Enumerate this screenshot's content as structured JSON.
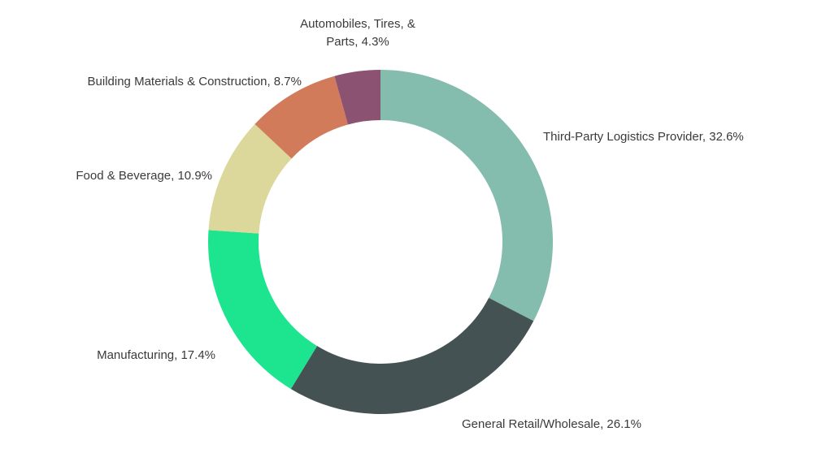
{
  "chart_data": {
    "type": "pie",
    "donut": true,
    "title": "",
    "start": "top",
    "direction": "clockwise",
    "slices": [
      {
        "label": "Third-Party Logistics Provider, 32.6%",
        "value": 32.6,
        "color": "#84bcae"
      },
      {
        "label": "General Retail/Wholesale, 26.1%",
        "value": 26.1,
        "color": "#455254"
      },
      {
        "label": "Manufacturing, 17.4%",
        "value": 17.4,
        "color": "#1de58f"
      },
      {
        "label": "Food & Beverage, 10.9%",
        "value": 10.9,
        "color": "#dcd79b"
      },
      {
        "label": "Building Materials & Construction, 8.7%",
        "value": 8.7,
        "color": "#d27b5a"
      },
      {
        "label": "Automobiles, Tires, & Parts, 4.3%",
        "value": 4.3,
        "color": "#8b5271"
      }
    ],
    "auto_label_lines": [
      "Automobiles, Tires, &",
      "Parts, 4.3%"
    ]
  }
}
